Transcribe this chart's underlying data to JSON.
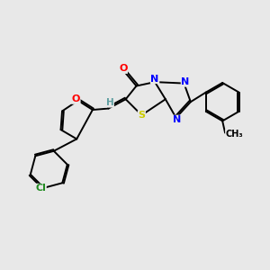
{
  "background_color": "#e8e8e8",
  "atom_colors": {
    "C": "#000000",
    "H": "#5f9ea0",
    "N": "#0000FF",
    "O": "#FF0000",
    "S": "#cccc00",
    "Cl": "#228B22"
  },
  "bond_color": "#000000",
  "bond_width": 1.4,
  "figsize": [
    3.0,
    3.0
  ],
  "dpi": 100
}
